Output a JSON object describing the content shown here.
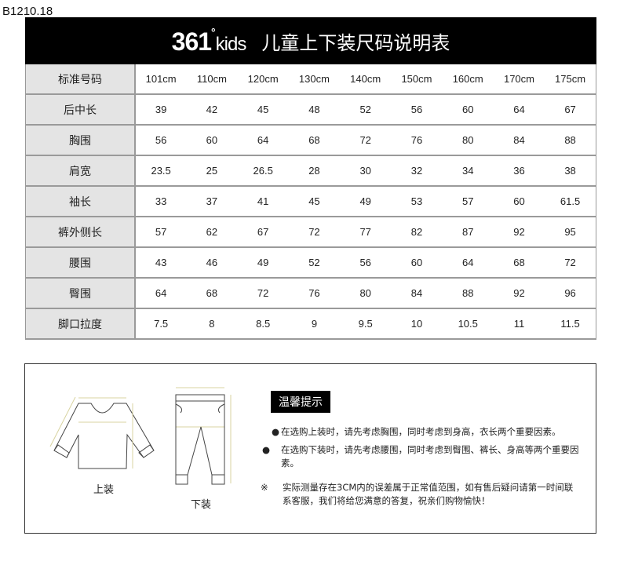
{
  "code": "B1210.18",
  "banner": {
    "logo": "361°kids",
    "title": "儿童上下装尺码说明表"
  },
  "table": {
    "header": {
      "label": "标准号码",
      "sizes": [
        "101cm",
        "110cm",
        "120cm",
        "130cm",
        "140cm",
        "150cm",
        "160cm",
        "170cm",
        "175cm"
      ]
    },
    "rows": [
      {
        "label": "后中长",
        "values": [
          "39",
          "42",
          "45",
          "48",
          "52",
          "56",
          "60",
          "64",
          "67"
        ]
      },
      {
        "label": "胸围",
        "values": [
          "56",
          "60",
          "64",
          "68",
          "72",
          "76",
          "80",
          "84",
          "88"
        ]
      },
      {
        "label": "肩宽",
        "values": [
          "23.5",
          "25",
          "26.5",
          "28",
          "30",
          "32",
          "34",
          "36",
          "38"
        ]
      },
      {
        "label": "袖长",
        "values": [
          "33",
          "37",
          "41",
          "45",
          "49",
          "53",
          "57",
          "60",
          "61.5"
        ]
      },
      {
        "label": "裤外侧长",
        "values": [
          "57",
          "62",
          "67",
          "72",
          "77",
          "82",
          "87",
          "92",
          "95"
        ]
      },
      {
        "label": "腰围",
        "values": [
          "43",
          "46",
          "49",
          "52",
          "56",
          "60",
          "64",
          "68",
          "72"
        ]
      },
      {
        "label": "臀围",
        "values": [
          "64",
          "68",
          "72",
          "76",
          "80",
          "84",
          "88",
          "92",
          "96"
        ]
      },
      {
        "label": "脚口拉度",
        "values": [
          "7.5",
          "8",
          "8.5",
          "9",
          "9.5",
          "10",
          "10.5",
          "11",
          "11.5"
        ]
      }
    ]
  },
  "illustrations": {
    "top_label": "上装",
    "bottom_label": "下装"
  },
  "tips": {
    "heading": "温馨提示",
    "bullet": "●",
    "note_mark": "※",
    "items": [
      "在选购上装时，请先考虑胸围，同时考虑到身高，衣长两个重要因素。",
      "在选购下装时，请先考虑腰围，同时考虑到臀围、裤长、身高等两个重要因素。"
    ],
    "note": "实际测量存在3CM内的误差属于正常值范围，如有售后疑问请第一时间联系客服，我们将给您满意的答复，祝亲们购物愉快！"
  }
}
